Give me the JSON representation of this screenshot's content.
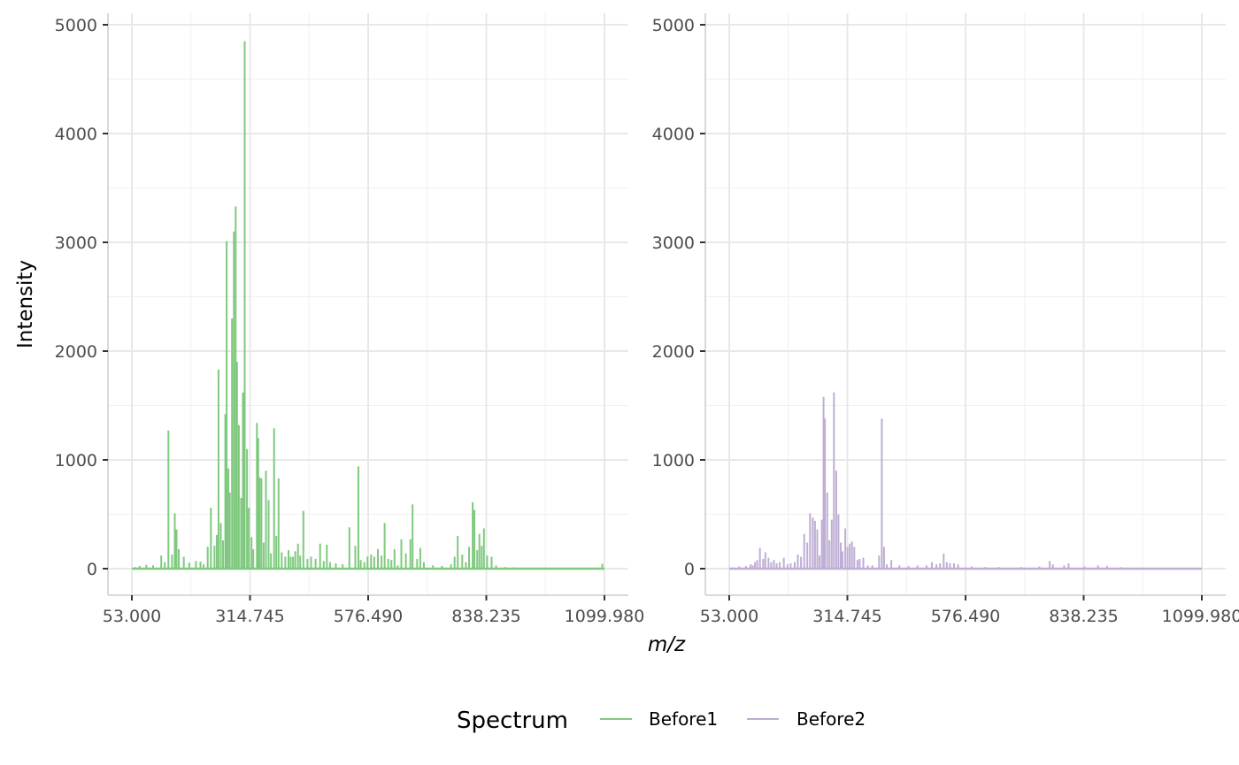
{
  "chart_data": {
    "type": "line",
    "xlabel": "m/z",
    "ylabel": "Intensity",
    "ylim": [
      -245,
      5100
    ],
    "y_ticks": [
      0,
      1000,
      2000,
      3000,
      4000,
      5000
    ],
    "x_ticks": [
      53.0,
      314.745,
      576.49,
      838.235,
      1099.98
    ],
    "x_tick_labels": [
      "53.000",
      "314.745",
      "576.490",
      "838.235",
      "1099.980"
    ],
    "grid": true,
    "legend": {
      "title": "Spectrum",
      "position": "bottom",
      "entries": [
        {
          "label": "Before1",
          "color": "#7fc97f"
        },
        {
          "label": "Before2",
          "color": "#beaed4"
        }
      ]
    },
    "panels": [
      {
        "series": "Before1",
        "color": "#7fc97f",
        "peaks": [
          [
            60,
            15
          ],
          [
            70,
            25
          ],
          [
            85,
            35
          ],
          [
            100,
            30
          ],
          [
            118,
            120
          ],
          [
            126,
            60
          ],
          [
            134,
            1270
          ],
          [
            142,
            130
          ],
          [
            148,
            510
          ],
          [
            152,
            360
          ],
          [
            157,
            180
          ],
          [
            168,
            110
          ],
          [
            180,
            55
          ],
          [
            195,
            70
          ],
          [
            205,
            65
          ],
          [
            212,
            40
          ],
          [
            221,
            200
          ],
          [
            228,
            560
          ],
          [
            236,
            210
          ],
          [
            241,
            310
          ],
          [
            245,
            1830
          ],
          [
            250,
            420
          ],
          [
            255,
            260
          ],
          [
            260,
            1420
          ],
          [
            263,
            3010
          ],
          [
            267,
            920
          ],
          [
            270,
            700
          ],
          [
            275,
            2300
          ],
          [
            279,
            3100
          ],
          [
            283,
            3330
          ],
          [
            286,
            1900
          ],
          [
            290,
            1320
          ],
          [
            295,
            650
          ],
          [
            299,
            1620
          ],
          [
            303,
            4850
          ],
          [
            308,
            1100
          ],
          [
            312,
            560
          ],
          [
            318,
            290
          ],
          [
            322,
            180
          ],
          [
            330,
            1340
          ],
          [
            333,
            1200
          ],
          [
            336,
            840
          ],
          [
            340,
            830
          ],
          [
            345,
            240
          ],
          [
            350,
            900
          ],
          [
            356,
            630
          ],
          [
            361,
            140
          ],
          [
            368,
            1290
          ],
          [
            373,
            300
          ],
          [
            378,
            830
          ],
          [
            385,
            150
          ],
          [
            393,
            110
          ],
          [
            400,
            170
          ],
          [
            405,
            110
          ],
          [
            410,
            110
          ],
          [
            415,
            160
          ],
          [
            421,
            230
          ],
          [
            426,
            120
          ],
          [
            433,
            530
          ],
          [
            442,
            90
          ],
          [
            450,
            110
          ],
          [
            460,
            90
          ],
          [
            470,
            230
          ],
          [
            478,
            70
          ],
          [
            485,
            220
          ],
          [
            492,
            60
          ],
          [
            505,
            50
          ],
          [
            520,
            40
          ],
          [
            535,
            380
          ],
          [
            548,
            210
          ],
          [
            555,
            940
          ],
          [
            560,
            80
          ],
          [
            568,
            60
          ],
          [
            575,
            110
          ],
          [
            583,
            130
          ],
          [
            590,
            110
          ],
          [
            598,
            180
          ],
          [
            606,
            120
          ],
          [
            613,
            420
          ],
          [
            621,
            90
          ],
          [
            628,
            80
          ],
          [
            635,
            180
          ],
          [
            642,
            30
          ],
          [
            650,
            270
          ],
          [
            660,
            140
          ],
          [
            670,
            270
          ],
          [
            675,
            590
          ],
          [
            685,
            90
          ],
          [
            692,
            190
          ],
          [
            700,
            60
          ],
          [
            720,
            30
          ],
          [
            740,
            25
          ],
          [
            760,
            40
          ],
          [
            768,
            110
          ],
          [
            775,
            300
          ],
          [
            785,
            130
          ],
          [
            793,
            60
          ],
          [
            800,
            200
          ],
          [
            808,
            610
          ],
          [
            812,
            540
          ],
          [
            818,
            170
          ],
          [
            823,
            320
          ],
          [
            828,
            210
          ],
          [
            833,
            370
          ],
          [
            840,
            120
          ],
          [
            850,
            110
          ],
          [
            860,
            30
          ],
          [
            880,
            15
          ],
          [
            900,
            12
          ],
          [
            940,
            10
          ],
          [
            980,
            10
          ],
          [
            1020,
            10
          ],
          [
            1060,
            8
          ],
          [
            1095,
            45
          ]
        ]
      },
      {
        "series": "Before2",
        "color": "#beaed4",
        "peaks": [
          [
            60,
            12
          ],
          [
            75,
            20
          ],
          [
            90,
            25
          ],
          [
            100,
            40
          ],
          [
            105,
            30
          ],
          [
            110,
            60
          ],
          [
            115,
            80
          ],
          [
            121,
            190
          ],
          [
            128,
            90
          ],
          [
            133,
            150
          ],
          [
            140,
            100
          ],
          [
            146,
            60
          ],
          [
            152,
            80
          ],
          [
            158,
            50
          ],
          [
            165,
            60
          ],
          [
            174,
            100
          ],
          [
            182,
            40
          ],
          [
            189,
            50
          ],
          [
            198,
            60
          ],
          [
            205,
            130
          ],
          [
            212,
            110
          ],
          [
            219,
            320
          ],
          [
            226,
            240
          ],
          [
            232,
            510
          ],
          [
            238,
            470
          ],
          [
            243,
            440
          ],
          [
            248,
            360
          ],
          [
            253,
            120
          ],
          [
            258,
            450
          ],
          [
            262,
            1580
          ],
          [
            265,
            1380
          ],
          [
            270,
            700
          ],
          [
            275,
            260
          ],
          [
            280,
            450
          ],
          [
            285,
            1620
          ],
          [
            290,
            900
          ],
          [
            295,
            500
          ],
          [
            300,
            240
          ],
          [
            304,
            160
          ],
          [
            310,
            370
          ],
          [
            315,
            200
          ],
          [
            320,
            230
          ],
          [
            325,
            250
          ],
          [
            330,
            200
          ],
          [
            337,
            80
          ],
          [
            342,
            90
          ],
          [
            350,
            100
          ],
          [
            360,
            30
          ],
          [
            370,
            30
          ],
          [
            385,
            120
          ],
          [
            391,
            1380
          ],
          [
            396,
            200
          ],
          [
            402,
            40
          ],
          [
            412,
            80
          ],
          [
            430,
            30
          ],
          [
            450,
            25
          ],
          [
            470,
            30
          ],
          [
            490,
            30
          ],
          [
            502,
            60
          ],
          [
            512,
            40
          ],
          [
            520,
            50
          ],
          [
            528,
            140
          ],
          [
            535,
            60
          ],
          [
            542,
            50
          ],
          [
            551,
            50
          ],
          [
            560,
            40
          ],
          [
            590,
            20
          ],
          [
            620,
            15
          ],
          [
            650,
            15
          ],
          [
            700,
            15
          ],
          [
            740,
            20
          ],
          [
            763,
            70
          ],
          [
            770,
            40
          ],
          [
            795,
            30
          ],
          [
            805,
            50
          ],
          [
            840,
            20
          ],
          [
            870,
            30
          ],
          [
            890,
            25
          ],
          [
            920,
            15
          ],
          [
            960,
            10
          ],
          [
            1000,
            10
          ],
          [
            1050,
            10
          ],
          [
            1095,
            8
          ]
        ]
      }
    ]
  }
}
